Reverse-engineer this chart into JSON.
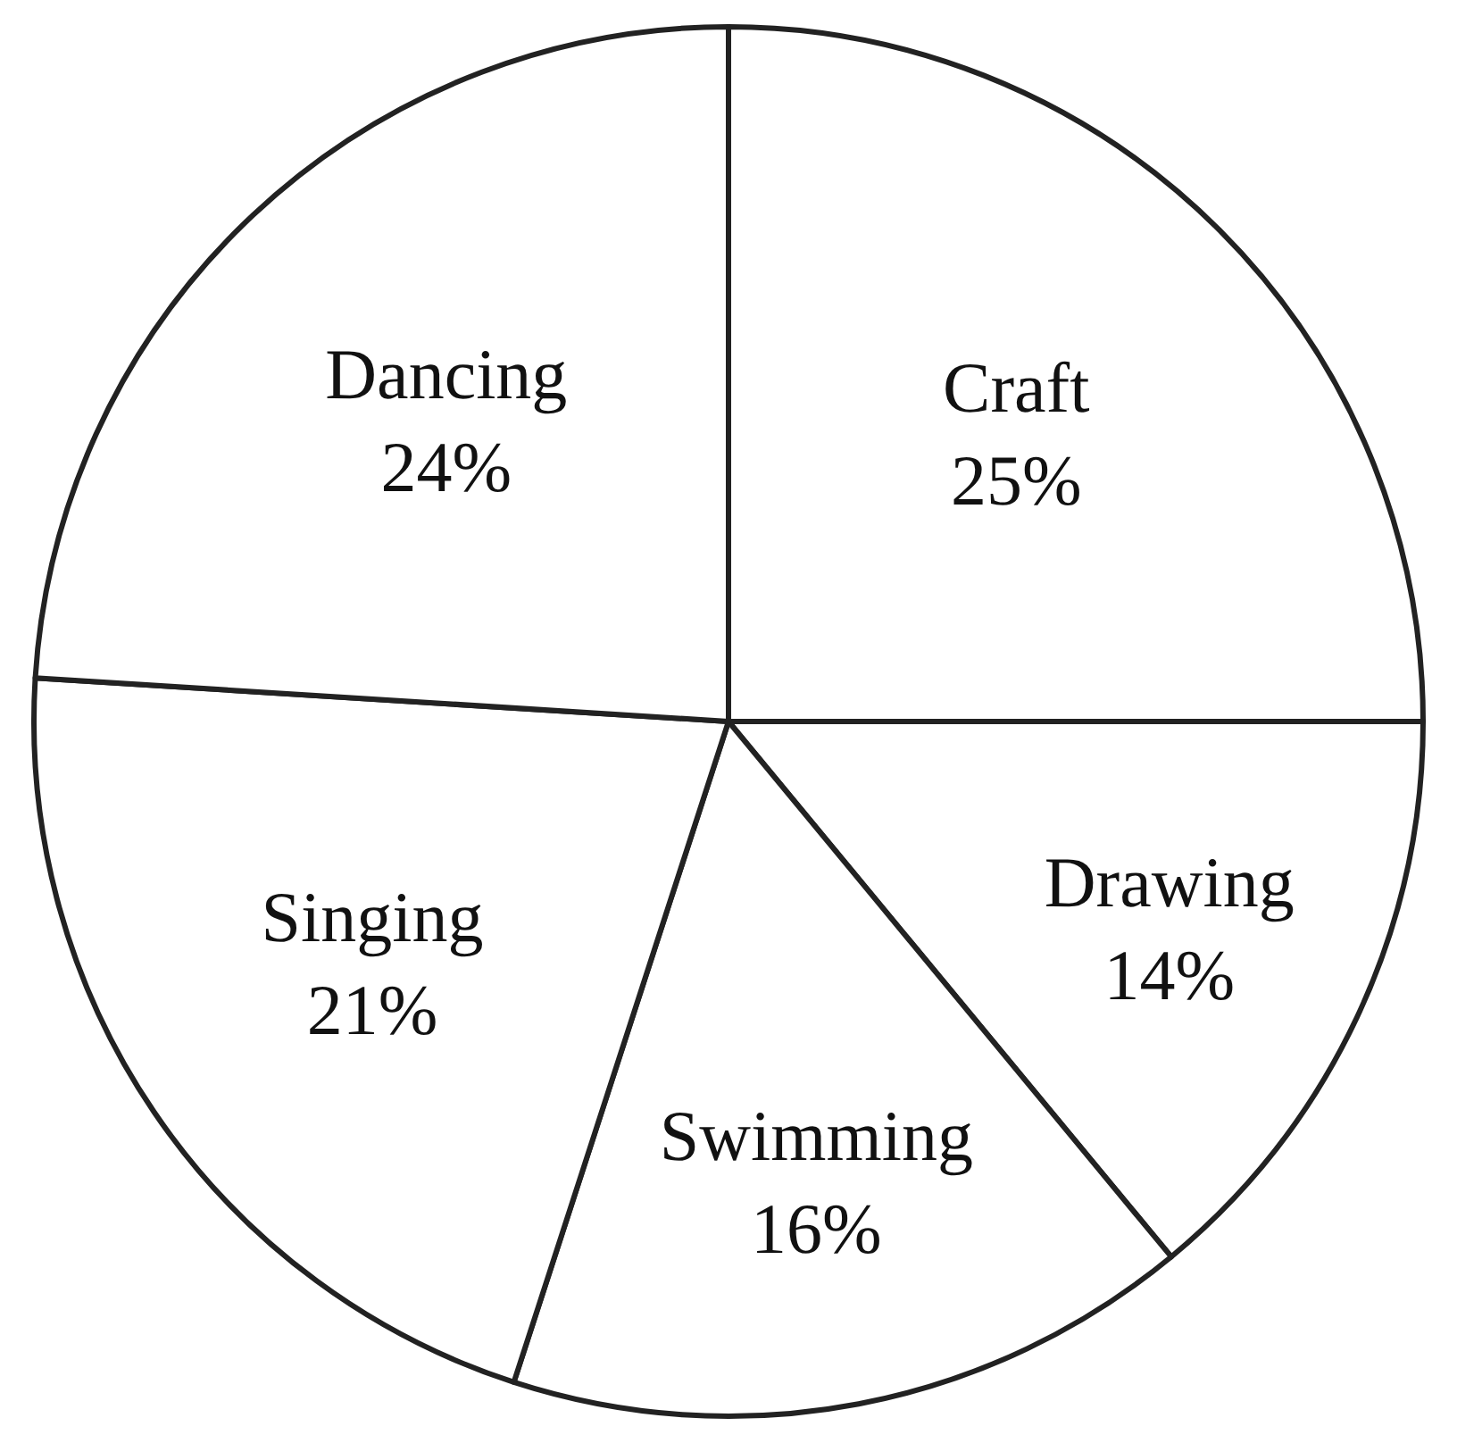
{
  "chart_data": {
    "type": "pie",
    "categories": [
      "Craft",
      "Drawing",
      "Swimming",
      "Singing",
      "Dancing"
    ],
    "values": [
      25,
      14,
      16,
      21,
      24
    ],
    "value_labels": [
      "25%",
      "14%",
      "16%",
      "21%",
      "24%"
    ],
    "colors": [
      "#ffffff",
      "#ffffff",
      "#ffffff",
      "#ffffff",
      "#ffffff"
    ],
    "legend": false
  }
}
